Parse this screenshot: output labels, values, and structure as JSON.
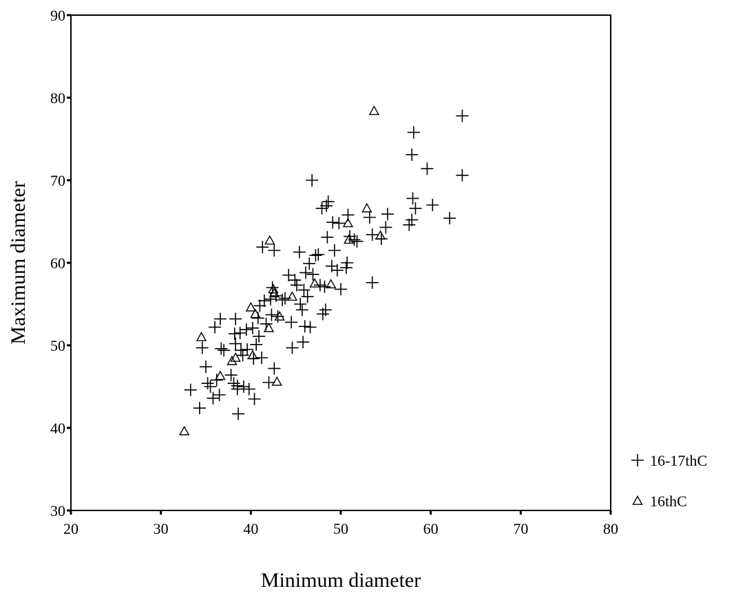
{
  "chart_data": {
    "type": "scatter",
    "xlabel": "Minimum diameter",
    "ylabel": "Maximum diameter",
    "xlim": [
      20,
      80
    ],
    "ylim": [
      30,
      90
    ],
    "xticks": [
      "20",
      "30",
      "40",
      "50",
      "60",
      "70",
      "80"
    ],
    "yticks": [
      "30",
      "40",
      "50",
      "60",
      "70",
      "80",
      "90"
    ],
    "grid": false,
    "legend_position": "right",
    "series": [
      {
        "name": "16-17thC",
        "marker": "plus",
        "points": [
          [
            33.3,
            44.6
          ],
          [
            34.3,
            42.4
          ],
          [
            34.6,
            49.7
          ],
          [
            35.0,
            47.4
          ],
          [
            35.2,
            45.4
          ],
          [
            35.5,
            45.0
          ],
          [
            35.8,
            43.6
          ],
          [
            36.0,
            52.2
          ],
          [
            36.2,
            45.8
          ],
          [
            36.5,
            44.0
          ],
          [
            36.6,
            53.2
          ],
          [
            36.7,
            49.6
          ],
          [
            37.0,
            49.4
          ],
          [
            37.8,
            46.4
          ],
          [
            38.1,
            45.4
          ],
          [
            38.2,
            51.4
          ],
          [
            38.3,
            53.2
          ],
          [
            38.3,
            50.2
          ],
          [
            38.5,
            45.1
          ],
          [
            38.5,
            44.7
          ],
          [
            38.6,
            41.7
          ],
          [
            38.8,
            51.5
          ],
          [
            38.9,
            49.4
          ],
          [
            39.1,
            48.8
          ],
          [
            39.2,
            45.0
          ],
          [
            39.5,
            51.9
          ],
          [
            39.6,
            49.5
          ],
          [
            39.8,
            44.7
          ],
          [
            40.2,
            52.1
          ],
          [
            40.3,
            48.4
          ],
          [
            40.4,
            43.5
          ],
          [
            40.6,
            50.1
          ],
          [
            40.8,
            53.3
          ],
          [
            40.9,
            51.1
          ],
          [
            41.0,
            54.8
          ],
          [
            41.2,
            48.5
          ],
          [
            41.3,
            61.9
          ],
          [
            41.5,
            55.4
          ],
          [
            41.7,
            52.6
          ],
          [
            42.0,
            45.5
          ],
          [
            42.2,
            55.6
          ],
          [
            42.3,
            53.7
          ],
          [
            42.4,
            57.0
          ],
          [
            42.6,
            61.5
          ],
          [
            42.6,
            47.2
          ],
          [
            42.8,
            56.0
          ],
          [
            43.0,
            53.5
          ],
          [
            43.5,
            55.5
          ],
          [
            43.8,
            55.7
          ],
          [
            44.2,
            58.5
          ],
          [
            44.5,
            52.8
          ],
          [
            44.6,
            49.7
          ],
          [
            44.9,
            57.9
          ],
          [
            45.1,
            57.3
          ],
          [
            45.4,
            61.3
          ],
          [
            45.5,
            55.0
          ],
          [
            45.7,
            54.3
          ],
          [
            45.8,
            50.4
          ],
          [
            45.9,
            56.7
          ],
          [
            46.0,
            52.3
          ],
          [
            46.1,
            58.8
          ],
          [
            46.3,
            55.9
          ],
          [
            46.5,
            59.9
          ],
          [
            46.6,
            52.2
          ],
          [
            46.8,
            70.0
          ],
          [
            46.9,
            58.6
          ],
          [
            47.2,
            60.9
          ],
          [
            47.5,
            61.0
          ],
          [
            47.7,
            57.3
          ],
          [
            47.9,
            66.6
          ],
          [
            48.0,
            53.8
          ],
          [
            48.2,
            57.1
          ],
          [
            48.3,
            54.3
          ],
          [
            48.4,
            66.9
          ],
          [
            48.5,
            63.1
          ],
          [
            48.6,
            67.4
          ],
          [
            49.0,
            59.6
          ],
          [
            49.1,
            64.9
          ],
          [
            49.3,
            61.5
          ],
          [
            49.6,
            59.1
          ],
          [
            49.8,
            64.8
          ],
          [
            50.0,
            56.8
          ],
          [
            50.6,
            59.4
          ],
          [
            50.7,
            60.0
          ],
          [
            50.8,
            65.8
          ],
          [
            51.0,
            63.2
          ],
          [
            51.5,
            62.8
          ],
          [
            51.8,
            62.6
          ],
          [
            53.2,
            65.5
          ],
          [
            53.5,
            57.6
          ],
          [
            53.5,
            63.4
          ],
          [
            54.5,
            62.9
          ],
          [
            55.0,
            64.3
          ],
          [
            55.2,
            65.9
          ],
          [
            57.6,
            64.6
          ],
          [
            57.9,
            65.2
          ],
          [
            57.9,
            73.1
          ],
          [
            58.0,
            67.8
          ],
          [
            58.1,
            75.8
          ],
          [
            58.3,
            66.6
          ],
          [
            59.6,
            71.4
          ],
          [
            60.2,
            67.0
          ],
          [
            62.1,
            65.4
          ],
          [
            63.5,
            77.8
          ],
          [
            63.5,
            70.6
          ]
        ]
      },
      {
        "name": "16thC",
        "marker": "triangle",
        "points": [
          [
            32.6,
            39.6
          ],
          [
            34.5,
            51.0
          ],
          [
            36.6,
            46.3
          ],
          [
            37.9,
            48.1
          ],
          [
            38.3,
            48.5
          ],
          [
            40.0,
            54.6
          ],
          [
            40.2,
            48.8
          ],
          [
            40.5,
            53.8
          ],
          [
            42.0,
            52.1
          ],
          [
            42.1,
            62.7
          ],
          [
            42.5,
            56.8
          ],
          [
            42.6,
            56.3
          ],
          [
            42.9,
            45.6
          ],
          [
            43.2,
            53.5
          ],
          [
            44.6,
            55.9
          ],
          [
            47.1,
            57.5
          ],
          [
            48.9,
            57.4
          ],
          [
            50.8,
            64.8
          ],
          [
            50.9,
            62.8
          ],
          [
            52.9,
            66.6
          ],
          [
            53.7,
            78.4
          ],
          [
            54.4,
            63.3
          ]
        ]
      }
    ]
  }
}
